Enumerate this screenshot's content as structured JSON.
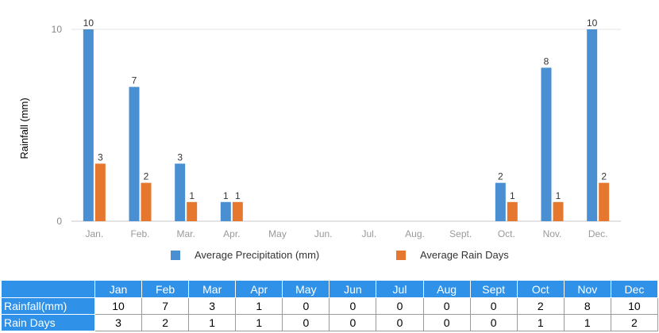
{
  "chart_data": {
    "type": "bar",
    "categories": [
      "Jan.",
      "Feb.",
      "Mar.",
      "Apr.",
      "May",
      "Jun.",
      "Jul.",
      "Aug.",
      "Sept.",
      "Oct.",
      "Nov.",
      "Dec."
    ],
    "series": [
      {
        "name": "Average Precipitation (mm)",
        "values": [
          10,
          7,
          3,
          1,
          0,
          0,
          0,
          0,
          0,
          2,
          8,
          10
        ],
        "color": "#4a8fd2"
      },
      {
        "name": "Average Rain Days",
        "values": [
          3,
          2,
          1,
          1,
          0,
          0,
          0,
          0,
          0,
          1,
          1,
          2
        ],
        "color": "#e5782e"
      }
    ],
    "ylabel": "Rainfall (mm)",
    "ylim": [
      0,
      10
    ],
    "yticks": [
      0,
      10
    ],
    "grid": true,
    "legend": "bottom"
  },
  "table": {
    "columns": [
      "Jan",
      "Feb",
      "Mar",
      "Apr",
      "May",
      "Jun",
      "Jul",
      "Aug",
      "Sept",
      "Oct",
      "Nov",
      "Dec"
    ],
    "rows": [
      {
        "label": "Rainfall(mm)",
        "values": [
          "10",
          "7",
          "3",
          "1",
          "0",
          "0",
          "0",
          "0",
          "0",
          "2",
          "8",
          "10"
        ]
      },
      {
        "label": "Rain Days",
        "values": [
          "3",
          "2",
          "1",
          "1",
          "0",
          "0",
          "0",
          "0",
          "0",
          "1",
          "1",
          "2"
        ]
      }
    ]
  }
}
